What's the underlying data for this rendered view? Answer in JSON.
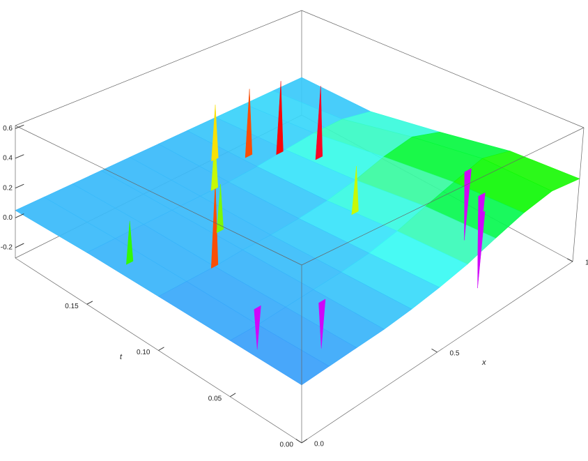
{
  "chart_data": {
    "type": "surface3d",
    "x_label": "x",
    "t_label": "t",
    "xlim": [
      0,
      1
    ],
    "tlim": [
      0,
      0.2
    ],
    "zlim": [
      -0.27,
      0.62
    ],
    "xticks": [
      {
        "value": 0,
        "label": "0.0"
      },
      0.5,
      {
        "value": 1,
        "label": "1.0"
      }
    ],
    "tticks": [
      {
        "value": 0,
        "label": "0.00"
      },
      0.05,
      {
        "value": 0.1,
        "label": "0.10"
      },
      0.15
    ],
    "zticks": [
      -0.2,
      {
        "value": 0,
        "label": "0.0"
      },
      0.2,
      0.4,
      0.6
    ],
    "grid_x": [
      0,
      0.1,
      0.2,
      0.3,
      0.4,
      0.5,
      0.6,
      0.7,
      0.8,
      0.9,
      1
    ],
    "grid_t": [
      0,
      0.05,
      0.1,
      0.15,
      0.2
    ],
    "z": [
      [
        0.02,
        0.03,
        0.04,
        0.05,
        0.07,
        0.1,
        0.14,
        0.2,
        0.26,
        0.3,
        0.28
      ],
      [
        0.03,
        0.03,
        0.04,
        0.05,
        0.06,
        0.08,
        0.12,
        0.18,
        0.24,
        0.3,
        0.25
      ],
      [
        0.04,
        0.04,
        0.04,
        0.05,
        0.05,
        0.06,
        0.08,
        0.12,
        0.18,
        0.22,
        0.15
      ],
      [
        0.05,
        0.05,
        0.05,
        0.05,
        0.05,
        0.05,
        0.06,
        0.08,
        0.1,
        0.1,
        0.05
      ],
      [
        0.05,
        0.05,
        0.05,
        0.05,
        0.05,
        0.05,
        0.05,
        0.05,
        0.05,
        0.05,
        0.05
      ]
    ],
    "spikes": {
      "x": [
        0.05,
        0.2,
        0.32,
        0.45,
        0.55,
        0.62,
        0.68,
        0.72,
        0.15,
        0.28,
        0.75,
        0.8,
        0.85,
        0.6
      ],
      "t": [
        0.13,
        0.1,
        0.12,
        0.15,
        0.17,
        0.16,
        0.15,
        0.13,
        0.06,
        0.04,
        0.02,
        0.03,
        0.05,
        0.08
      ],
      "z": [
        0.3,
        0.55,
        0.35,
        0.4,
        0.45,
        0.55,
        0.6,
        0.62,
        -0.2,
        -0.22,
        -0.25,
        -0.22,
        -0.2,
        0.4
      ]
    }
  }
}
